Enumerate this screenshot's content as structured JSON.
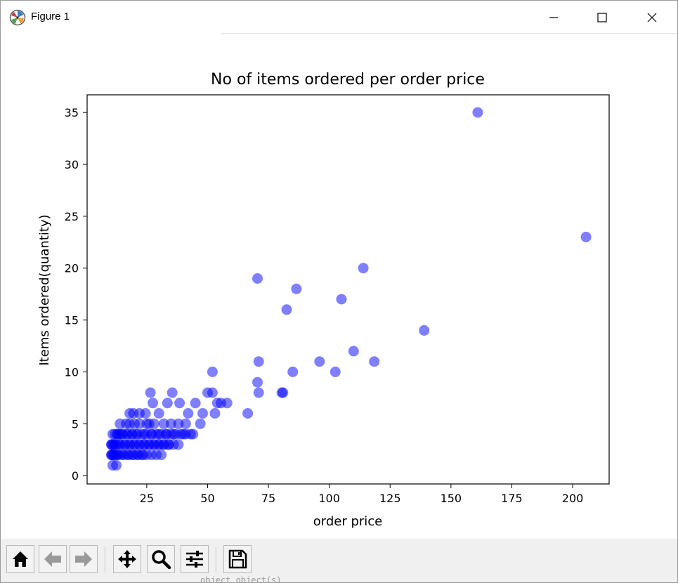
{
  "window": {
    "title": "Figure 1",
    "controls": [
      "minimize-icon",
      "maximize-icon",
      "close-icon"
    ]
  },
  "toolbar": {
    "buttons": [
      {
        "name": "home-button",
        "icon": "home-icon"
      },
      {
        "name": "back-button",
        "icon": "arrow-left-icon"
      },
      {
        "name": "forward-button",
        "icon": "arrow-right-icon"
      },
      {
        "name": "pan-button",
        "icon": "move-icon"
      },
      {
        "name": "zoom-button",
        "icon": "magnifier-icon"
      },
      {
        "name": "configure-subplots-button",
        "icon": "sliders-icon"
      },
      {
        "name": "save-button",
        "icon": "floppy-disk-icon"
      }
    ]
  },
  "chart_data": {
    "type": "scatter",
    "title": "No of items ordered per order price",
    "xlabel": "order price",
    "ylabel": "Items ordered(quantity)",
    "xlim": [
      0.5,
      215
    ],
    "ylim": [
      -0.8,
      36.7
    ],
    "xticks": [
      25,
      50,
      75,
      100,
      125,
      150,
      175,
      200
    ],
    "yticks": [
      0,
      5,
      10,
      15,
      20,
      25,
      30,
      35
    ],
    "grid": false,
    "marker_color": "#0000ff",
    "marker_alpha": 0.5,
    "series": [
      {
        "x": [
          161,
          205.5,
          114,
          105,
          86.5,
          82.5,
          70.5,
          139,
          110,
          118.5,
          96,
          102.5,
          85,
          71,
          52,
          70.5,
          81,
          80.5,
          71,
          66.5,
          55.5,
          58,
          54,
          50,
          52,
          26.5,
          35.5,
          27.5,
          33.5,
          38.5,
          45,
          19.5,
          24.5,
          30,
          42,
          48,
          53,
          41,
          47,
          38,
          35,
          32,
          28,
          25,
          22,
          20,
          18,
          16.5,
          44,
          40,
          36,
          33,
          30,
          27,
          24,
          21,
          19,
          17,
          15,
          14,
          13,
          12,
          11,
          10.5,
          10.5,
          11.5,
          12.5,
          14,
          16,
          18,
          20,
          22,
          24,
          26,
          28,
          30,
          32,
          34,
          13,
          15,
          17,
          19,
          21,
          23,
          25,
          27,
          29,
          31,
          33,
          35,
          37,
          39,
          41,
          43,
          11,
          12,
          14,
          16,
          18,
          20,
          22,
          24,
          26,
          28,
          30,
          32,
          34,
          36,
          38,
          11,
          13,
          15,
          17,
          19,
          21,
          23,
          25,
          27,
          29,
          31,
          10.5,
          11.5,
          13.5,
          15.5,
          17.5,
          19.5,
          21.5,
          23.5,
          11,
          12.5,
          10.5,
          11.5,
          12.5,
          26,
          18,
          14,
          22
        ],
        "y": [
          35,
          23,
          20,
          17,
          18,
          16,
          19,
          14,
          12,
          11,
          11,
          10,
          10,
          11,
          10,
          9,
          8,
          8,
          8,
          6,
          7,
          7,
          7,
          8,
          8,
          8,
          8,
          7,
          7,
          7,
          7,
          6,
          6,
          6,
          6,
          6,
          6,
          5,
          5,
          5,
          5,
          5,
          5,
          5,
          5,
          5,
          5,
          5,
          4,
          4,
          4,
          4,
          4,
          4,
          4,
          4,
          4,
          4,
          4,
          4,
          4,
          4,
          4,
          3,
          3,
          3,
          3,
          3,
          3,
          3,
          3,
          3,
          3,
          3,
          3,
          3,
          3,
          3,
          4,
          4,
          4,
          4,
          4,
          4,
          4,
          4,
          4,
          4,
          4,
          4,
          4,
          4,
          4,
          4,
          3,
          3,
          3,
          3,
          3,
          3,
          3,
          3,
          3,
          3,
          3,
          3,
          3,
          3,
          3,
          2,
          2,
          2,
          2,
          2,
          2,
          2,
          2,
          2,
          2,
          2,
          2,
          2,
          2,
          2,
          2,
          2,
          2,
          2,
          1,
          1,
          2,
          2,
          2,
          5,
          6,
          5,
          6
        ]
      }
    ]
  },
  "background_text": "object_object(s)"
}
